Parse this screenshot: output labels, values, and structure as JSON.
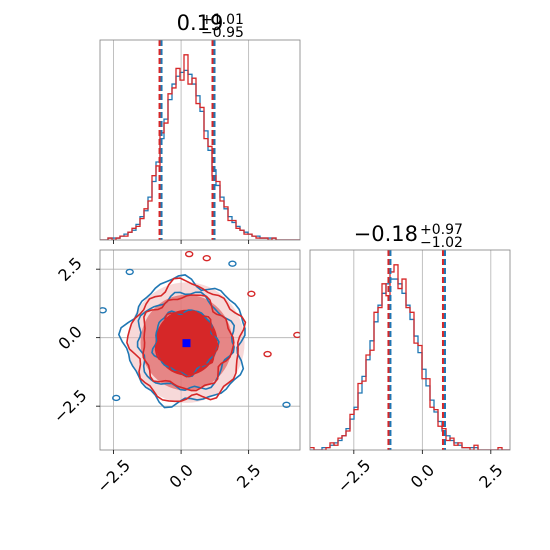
{
  "chart_data": {
    "type": "corner",
    "colors": {
      "series_a": "#1f77b4",
      "series_b": "#d62728",
      "marker": "#0000ff",
      "grid": "#b0b0b0"
    },
    "panels": [
      {
        "id": "hist_param1",
        "type": "histogram",
        "title": {
          "median": "0.19",
          "plus": "+1.01",
          "minus": "−0.95"
        },
        "xlim": [
          -3.0,
          4.4
        ],
        "x_ticks": [
          -2.5,
          0.0,
          2.5
        ],
        "quantile_lines": [
          -0.76,
          1.2
        ],
        "series": [
          {
            "bin_start": -3.0,
            "bin_width": 0.148,
            "values": [
              0,
              0,
              1,
              1,
              1,
              2,
              3,
              4,
              5,
              8,
              12,
              15,
              22,
              30,
              40,
              52,
              62,
              72,
              80,
              84,
              86,
              87,
              85,
              80,
              74,
              66,
              56,
              46,
              36,
              28,
              22,
              16,
              12,
              9,
              7,
              5,
              4,
              3,
              2,
              2,
              1,
              1,
              1,
              1,
              0,
              0,
              0,
              0,
              0,
              0
            ]
          },
          {
            "bin_start": -3.0,
            "bin_width": 0.148,
            "values": [
              0,
              0,
              1,
              0,
              1,
              2,
              2,
              4,
              6,
              7,
              11,
              16,
              20,
              33,
              38,
              55,
              60,
              75,
              78,
              88,
              82,
              95,
              80,
              83,
              70,
              68,
              52,
              48,
              33,
              30,
              20,
              17,
              10,
              10,
              6,
              5,
              3,
              3,
              2,
              1,
              1,
              1,
              0,
              1,
              0,
              0,
              0,
              0,
              0,
              0
            ]
          }
        ]
      },
      {
        "id": "scatter_contour",
        "type": "contour",
        "xlim": [
          -3.0,
          4.4
        ],
        "ylim": [
          -4.1,
          3.2
        ],
        "x_ticks": [
          -2.5,
          0.0,
          2.5
        ],
        "y_ticks": [
          -2.5,
          0.0,
          2.5
        ],
        "x_tick_labels": [
          "−2.5",
          "0.0",
          "2.5"
        ],
        "y_tick_labels": [
          "−2.5",
          "0.0",
          "2.5"
        ],
        "marker": [
          0.2,
          -0.2
        ],
        "levels": [
          {
            "series": "series_a",
            "radius": [
              1.15,
              1.15
            ],
            "center": [
              0.15,
              -0.15
            ]
          },
          {
            "series": "series_a",
            "radius": [
              1.75,
              1.75
            ],
            "center": [
              0.15,
              -0.15
            ]
          },
          {
            "series": "series_a",
            "radius": [
              2.2,
              2.25
            ],
            "center": [
              0.15,
              -0.15
            ]
          },
          {
            "series": "series_b",
            "radius": [
              1.1,
              1.15
            ],
            "center": [
              0.2,
              -0.18
            ]
          },
          {
            "series": "series_b",
            "radius": [
              1.65,
              1.7
            ],
            "center": [
              0.2,
              -0.18
            ]
          },
          {
            "series": "series_b",
            "radius": [
              2.05,
              2.15
            ],
            "center": [
              0.2,
              -0.18
            ]
          }
        ]
      },
      {
        "id": "hist_param2",
        "type": "histogram",
        "title": {
          "median": "−0.18",
          "plus": "+0.97",
          "minus": "−1.02"
        },
        "xlim": [
          -4.1,
          3.2
        ],
        "x_ticks": [
          -2.5,
          0.0,
          2.5
        ],
        "x_tick_labels": [
          "−2.5",
          "0.0",
          "2.5"
        ],
        "quantile_lines": [
          -1.2,
          0.79
        ],
        "series": [
          {
            "bin_start": -4.1,
            "bin_width": 0.146,
            "values": [
              0,
              0,
              0,
              1,
              1,
              2,
              3,
              4,
              6,
              9,
              13,
              18,
              24,
              31,
              38,
              46,
              54,
              61,
              66,
              70,
              72,
              72,
              70,
              66,
              61,
              55,
              48,
              41,
              34,
              27,
              21,
              16,
              12,
              8,
              6,
              4,
              3,
              2,
              1,
              1,
              1,
              1,
              0,
              0,
              0,
              0,
              0,
              0,
              0,
              0
            ]
          },
          {
            "bin_start": -4.1,
            "bin_width": 0.146,
            "values": [
              1,
              0,
              0,
              0,
              1,
              3,
              2,
              5,
              6,
              8,
              15,
              17,
              28,
              29,
              40,
              42,
              58,
              60,
              70,
              65,
              75,
              78,
              68,
              72,
              60,
              58,
              45,
              44,
              30,
              30,
              18,
              17,
              10,
              9,
              4,
              5,
              2,
              3,
              1,
              1,
              0,
              2,
              0,
              0,
              0,
              0,
              0,
              1,
              0,
              0
            ]
          }
        ]
      }
    ]
  }
}
